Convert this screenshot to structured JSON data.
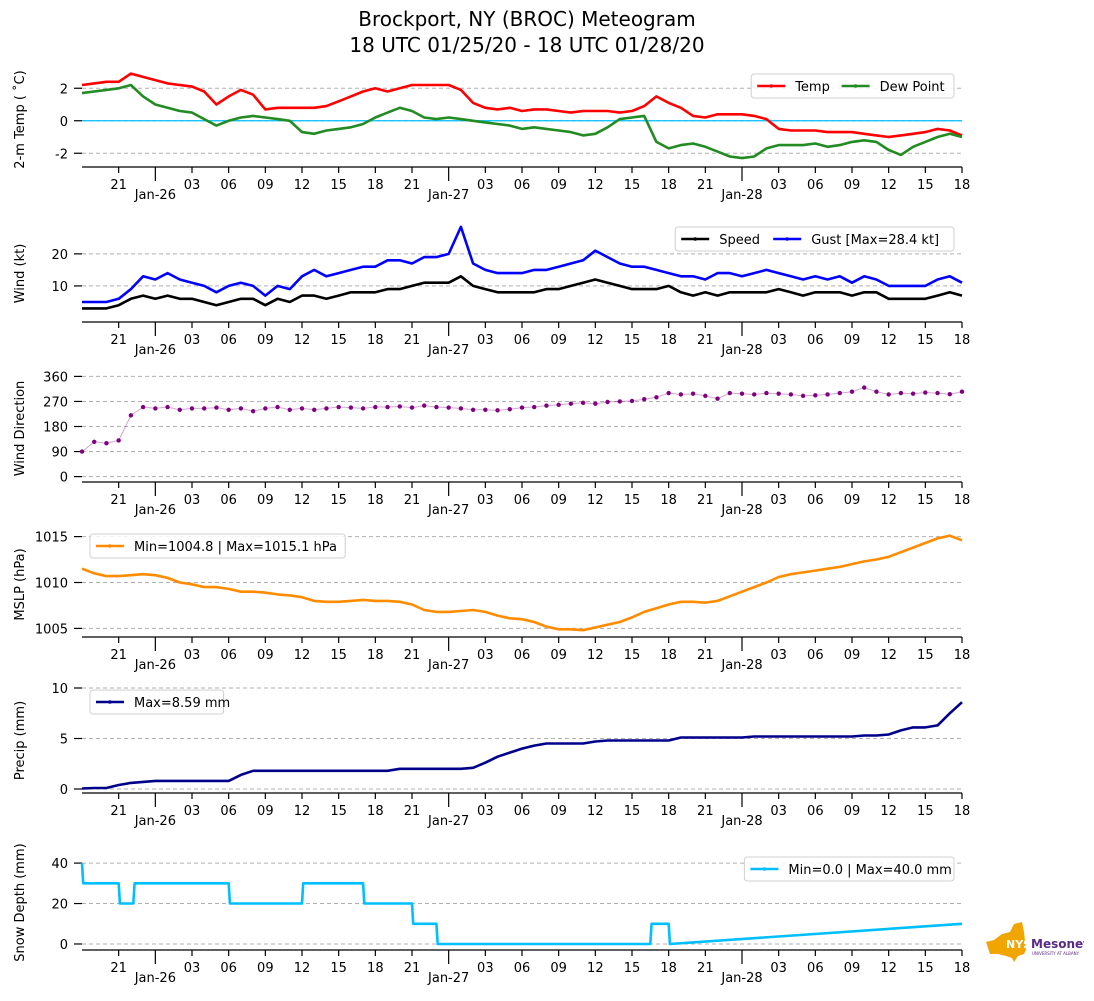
{
  "title": {
    "line1": "Brockport, NY (BROC) Meteogram",
    "line2": "18 UTC 01/25/20 - 18 UTC 01/28/20"
  },
  "logo": {
    "text_main": "NYS",
    "text_brand": "Mesonet",
    "text_sub": "UNIVERSITY AT ALBANY",
    "colors": {
      "state": "#f0a500",
      "brand": "#5b2a86"
    }
  },
  "chart_data": [
    {
      "type": "line",
      "ylabel": "2-m Temp ( ˚C)",
      "ylim": [
        -2.6,
        3.0
      ],
      "yticks": [
        -2,
        0,
        2
      ],
      "grid": true,
      "zero_line": {
        "value": 0,
        "color": "#00bfff"
      },
      "legend": {
        "placement": "top-right",
        "ncol": 2,
        "entries": [
          "Temp",
          "Dew Point"
        ]
      },
      "x": [
        0,
        1,
        2,
        3,
        4,
        5,
        6,
        7,
        8,
        9,
        10,
        11,
        12,
        13,
        14,
        15,
        16,
        17,
        18,
        19,
        20,
        21,
        22,
        23,
        24,
        25,
        26,
        27,
        28,
        29,
        30,
        31,
        32,
        33,
        34,
        35,
        36,
        37,
        38,
        39,
        40,
        41,
        42,
        43,
        44,
        45,
        46,
        47,
        48,
        49,
        50,
        51,
        52,
        53,
        54,
        55,
        56,
        57,
        58,
        59,
        60,
        61,
        62,
        63,
        64,
        65,
        66,
        67,
        68,
        69,
        70,
        71,
        72
      ],
      "series": [
        {
          "name": "Temp",
          "color": "#ff0000",
          "values": [
            2.2,
            2.3,
            2.4,
            2.4,
            2.9,
            2.7,
            2.5,
            2.3,
            2.2,
            2.1,
            1.8,
            1.0,
            1.5,
            1.9,
            1.6,
            0.7,
            0.8,
            0.8,
            0.8,
            0.8,
            0.9,
            1.2,
            1.5,
            1.8,
            2.0,
            1.8,
            2.0,
            2.2,
            2.2,
            2.2,
            2.2,
            1.9,
            1.1,
            0.8,
            0.7,
            0.8,
            0.6,
            0.7,
            0.7,
            0.6,
            0.5,
            0.6,
            0.6,
            0.6,
            0.5,
            0.6,
            0.9,
            1.5,
            1.1,
            0.8,
            0.3,
            0.2,
            0.4,
            0.4,
            0.4,
            0.3,
            0.1,
            -0.5,
            -0.6,
            -0.6,
            -0.6,
            -0.7,
            -0.7,
            -0.7,
            -0.8,
            -0.9,
            -1.0,
            -0.9,
            -0.8,
            -0.7,
            -0.5,
            -0.6,
            -0.9
          ]
        },
        {
          "name": "Dew Point",
          "color": "#228b22",
          "values": [
            1.7,
            1.8,
            1.9,
            2.0,
            2.2,
            1.5,
            1.0,
            0.8,
            0.6,
            0.5,
            0.1,
            -0.3,
            0.0,
            0.2,
            0.3,
            0.2,
            0.1,
            0.0,
            -0.7,
            -0.8,
            -0.6,
            -0.5,
            -0.4,
            -0.2,
            0.2,
            0.5,
            0.8,
            0.6,
            0.2,
            0.1,
            0.2,
            0.1,
            0.0,
            -0.1,
            -0.2,
            -0.3,
            -0.5,
            -0.4,
            -0.5,
            -0.6,
            -0.7,
            -0.9,
            -0.8,
            -0.4,
            0.1,
            0.2,
            0.3,
            -1.3,
            -1.7,
            -1.5,
            -1.4,
            -1.6,
            -1.9,
            -2.2,
            -2.3,
            -2.2,
            -1.7,
            -1.5,
            -1.5,
            -1.5,
            -1.4,
            -1.6,
            -1.5,
            -1.3,
            -1.2,
            -1.3,
            -1.8,
            -2.1,
            -1.6,
            -1.3,
            -1.0,
            -0.8,
            -1.0
          ]
        }
      ]
    },
    {
      "type": "line",
      "ylabel": "Wind (kt)",
      "ylim": [
        0,
        29
      ],
      "yticks": [
        10,
        20
      ],
      "grid": true,
      "legend": {
        "placement": "top-right",
        "ncol": 2,
        "entries": [
          "Speed",
          "Gust [Max=28.4 kt]"
        ]
      },
      "x": [
        0,
        1,
        2,
        3,
        4,
        5,
        6,
        7,
        8,
        9,
        10,
        11,
        12,
        13,
        14,
        15,
        16,
        17,
        18,
        19,
        20,
        21,
        22,
        23,
        24,
        25,
        26,
        27,
        28,
        29,
        30,
        31,
        32,
        33,
        34,
        35,
        36,
        37,
        38,
        39,
        40,
        41,
        42,
        43,
        44,
        45,
        46,
        47,
        48,
        49,
        50,
        51,
        52,
        53,
        54,
        55,
        56,
        57,
        58,
        59,
        60,
        61,
        62,
        63,
        64,
        65,
        66,
        67,
        68,
        69,
        70,
        71,
        72
      ],
      "series": [
        {
          "name": "Speed",
          "color": "#000000",
          "values": [
            3,
            3,
            3,
            4,
            6,
            7,
            6,
            7,
            6,
            6,
            5,
            4,
            5,
            6,
            6,
            4,
            6,
            5,
            7,
            7,
            6,
            7,
            8,
            8,
            8,
            9,
            9,
            10,
            11,
            11,
            11,
            13,
            10,
            9,
            8,
            8,
            8,
            8,
            9,
            9,
            10,
            11,
            12,
            11,
            10,
            9,
            9,
            9,
            10,
            8,
            7,
            8,
            7,
            8,
            8,
            8,
            8,
            9,
            8,
            7,
            8,
            8,
            8,
            7,
            8,
            8,
            6,
            6,
            6,
            6,
            7,
            8,
            7
          ]
        },
        {
          "name": "Gust [Max=28.4 kt]",
          "color": "#0000ff",
          "values": [
            5,
            5,
            5,
            6,
            9,
            13,
            12,
            14,
            12,
            11,
            10,
            8,
            10,
            11,
            10,
            7,
            10,
            9,
            13,
            15,
            13,
            14,
            15,
            16,
            16,
            18,
            18,
            17,
            19,
            19,
            20,
            28.4,
            17,
            15,
            14,
            14,
            14,
            15,
            15,
            16,
            17,
            18,
            21,
            19,
            17,
            16,
            16,
            15,
            14,
            13,
            13,
            12,
            14,
            14,
            13,
            14,
            15,
            14,
            13,
            12,
            13,
            12,
            13,
            11,
            13,
            12,
            10,
            10,
            10,
            10,
            12,
            13,
            11
          ]
        }
      ]
    },
    {
      "type": "scatter",
      "ylabel": "Wind Direction",
      "ylim": [
        -5,
        365
      ],
      "yticks": [
        0,
        90,
        180,
        270,
        360
      ],
      "grid": true,
      "legend": null,
      "x": [
        0,
        1,
        2,
        3,
        4,
        5,
        6,
        7,
        8,
        9,
        10,
        11,
        12,
        13,
        14,
        15,
        16,
        17,
        18,
        19,
        20,
        21,
        22,
        23,
        24,
        25,
        26,
        27,
        28,
        29,
        30,
        31,
        32,
        33,
        34,
        35,
        36,
        37,
        38,
        39,
        40,
        41,
        42,
        43,
        44,
        45,
        46,
        47,
        48,
        49,
        50,
        51,
        52,
        53,
        54,
        55,
        56,
        57,
        58,
        59,
        60,
        61,
        62,
        63,
        64,
        65,
        66,
        67,
        68,
        69,
        70,
        71,
        72
      ],
      "series": [
        {
          "name": "Wind Direction",
          "color": "#800080",
          "values": [
            90,
            125,
            120,
            130,
            220,
            250,
            245,
            250,
            240,
            245,
            245,
            248,
            240,
            245,
            235,
            245,
            250,
            240,
            245,
            240,
            245,
            250,
            248,
            245,
            250,
            250,
            252,
            248,
            255,
            250,
            248,
            245,
            240,
            240,
            238,
            242,
            248,
            250,
            255,
            258,
            262,
            265,
            262,
            268,
            270,
            272,
            278,
            285,
            300,
            295,
            298,
            290,
            280,
            300,
            298,
            295,
            300,
            298,
            295,
            290,
            292,
            295,
            300,
            305,
            320,
            305,
            295,
            300,
            298,
            302,
            300,
            296,
            305
          ]
        }
      ]
    },
    {
      "type": "line",
      "ylabel": "MSLP (hPa)",
      "ylim": [
        1004.5,
        1015.5
      ],
      "yticks": [
        1005,
        1010,
        1015
      ],
      "grid": true,
      "legend": {
        "placement": "top-left",
        "ncol": 1,
        "entries": [
          "Min=1004.8 | Max=1015.1 hPa"
        ]
      },
      "x": [
        0,
        1,
        2,
        3,
        4,
        5,
        6,
        7,
        8,
        9,
        10,
        11,
        12,
        13,
        14,
        15,
        16,
        17,
        18,
        19,
        20,
        21,
        22,
        23,
        24,
        25,
        26,
        27,
        28,
        29,
        30,
        31,
        32,
        33,
        34,
        35,
        36,
        37,
        38,
        39,
        40,
        41,
        42,
        43,
        44,
        45,
        46,
        47,
        48,
        49,
        50,
        51,
        52,
        53,
        54,
        55,
        56,
        57,
        58,
        59,
        60,
        61,
        62,
        63,
        64,
        65,
        66,
        67,
        68,
        69,
        70,
        71,
        72
      ],
      "series": [
        {
          "name": "Min=1004.8 | Max=1015.1 hPa",
          "color": "#ff8c00",
          "values": [
            1011.5,
            1011.0,
            1010.7,
            1010.7,
            1010.8,
            1010.9,
            1010.8,
            1010.5,
            1010.0,
            1009.8,
            1009.5,
            1009.5,
            1009.3,
            1009.0,
            1009.0,
            1008.9,
            1008.7,
            1008.6,
            1008.4,
            1008.0,
            1007.9,
            1007.9,
            1008.0,
            1008.1,
            1008.0,
            1008.0,
            1007.9,
            1007.6,
            1007.0,
            1006.8,
            1006.8,
            1006.9,
            1007.0,
            1006.8,
            1006.4,
            1006.1,
            1006.0,
            1005.7,
            1005.2,
            1004.9,
            1004.9,
            1004.8,
            1005.1,
            1005.4,
            1005.7,
            1006.2,
            1006.8,
            1007.2,
            1007.6,
            1007.9,
            1007.9,
            1007.8,
            1008.0,
            1008.5,
            1009.0,
            1009.5,
            1010.0,
            1010.6,
            1010.9,
            1011.1,
            1011.3,
            1011.5,
            1011.7,
            1012.0,
            1012.3,
            1012.5,
            1012.8,
            1013.3,
            1013.8,
            1014.3,
            1014.8,
            1015.1,
            1014.6
          ]
        }
      ]
    },
    {
      "type": "line",
      "ylabel": "Precip (mm)",
      "ylim": [
        0,
        10
      ],
      "yticks": [
        0,
        5,
        10
      ],
      "grid": true,
      "legend": {
        "placement": "top-left",
        "ncol": 1,
        "entries": [
          "Max=8.59 mm"
        ]
      },
      "x": [
        0,
        1,
        2,
        3,
        4,
        5,
        6,
        7,
        8,
        9,
        10,
        11,
        12,
        13,
        14,
        15,
        16,
        17,
        18,
        19,
        20,
        21,
        22,
        23,
        24,
        25,
        26,
        27,
        28,
        29,
        30,
        31,
        32,
        33,
        34,
        35,
        36,
        37,
        38,
        39,
        40,
        41,
        42,
        43,
        44,
        45,
        46,
        47,
        48,
        49,
        50,
        51,
        52,
        53,
        54,
        55,
        56,
        57,
        58,
        59,
        60,
        61,
        62,
        63,
        64,
        65,
        66,
        67,
        68,
        69,
        70,
        71,
        72
      ],
      "series": [
        {
          "name": "Max=8.59 mm",
          "color": "#00008b",
          "values": [
            0.05,
            0.1,
            0.1,
            0.4,
            0.6,
            0.7,
            0.8,
            0.8,
            0.8,
            0.8,
            0.8,
            0.8,
            0.8,
            1.4,
            1.8,
            1.8,
            1.8,
            1.8,
            1.8,
            1.8,
            1.8,
            1.8,
            1.8,
            1.8,
            1.8,
            1.8,
            2.0,
            2.0,
            2.0,
            2.0,
            2.0,
            2.0,
            2.1,
            2.6,
            3.2,
            3.6,
            4.0,
            4.3,
            4.5,
            4.5,
            4.5,
            4.5,
            4.7,
            4.8,
            4.8,
            4.8,
            4.8,
            4.8,
            4.8,
            5.1,
            5.1,
            5.1,
            5.1,
            5.1,
            5.1,
            5.2,
            5.2,
            5.2,
            5.2,
            5.2,
            5.2,
            5.2,
            5.2,
            5.2,
            5.3,
            5.3,
            5.4,
            5.8,
            6.1,
            6.1,
            6.3,
            7.5,
            8.59
          ]
        }
      ]
    },
    {
      "type": "line",
      "ylabel": "Snow Depth (mm)",
      "ylim": [
        -1,
        44
      ],
      "yticks": [
        0,
        20,
        40
      ],
      "grid": true,
      "legend": {
        "placement": "top-right",
        "ncol": 1,
        "entries": [
          "Min=0.0 | Max=40.0 mm"
        ]
      },
      "x": [
        0,
        0.1,
        3,
        3.1,
        4.2,
        4.3,
        6,
        8,
        8.1,
        12,
        12.1,
        18,
        18.1,
        23,
        23.1,
        27,
        27.1,
        28.5,
        28.6,
        29,
        29.1,
        30.5,
        30.6,
        34,
        34.1,
        36,
        40,
        45,
        46.5,
        46.6,
        48,
        48.1,
        72
      ],
      "series": [
        {
          "name": "Min=0.0 | Max=40.0 mm",
          "color": "#00bfff",
          "values": [
            40,
            30,
            30,
            20,
            20,
            30,
            30,
            30,
            30,
            30,
            20,
            20,
            30,
            30,
            20,
            20,
            10,
            10,
            10,
            10,
            0,
            0,
            0,
            0,
            0,
            0,
            0,
            0,
            0,
            10,
            10,
            0,
            10
          ]
        }
      ]
    }
  ],
  "x_axis": {
    "start": "18 UTC 01/25/20",
    "end": "18 UTC 01/28/20",
    "minor_tick_labels": [
      "21",
      "03",
      "06",
      "09",
      "12",
      "15",
      "18",
      "21",
      "03",
      "06",
      "09",
      "12",
      "15",
      "18",
      "21",
      "03",
      "06",
      "09",
      "12",
      "15",
      "18"
    ],
    "major_tick_labels": [
      "Jan-26",
      "Jan-27",
      "Jan-28"
    ]
  }
}
